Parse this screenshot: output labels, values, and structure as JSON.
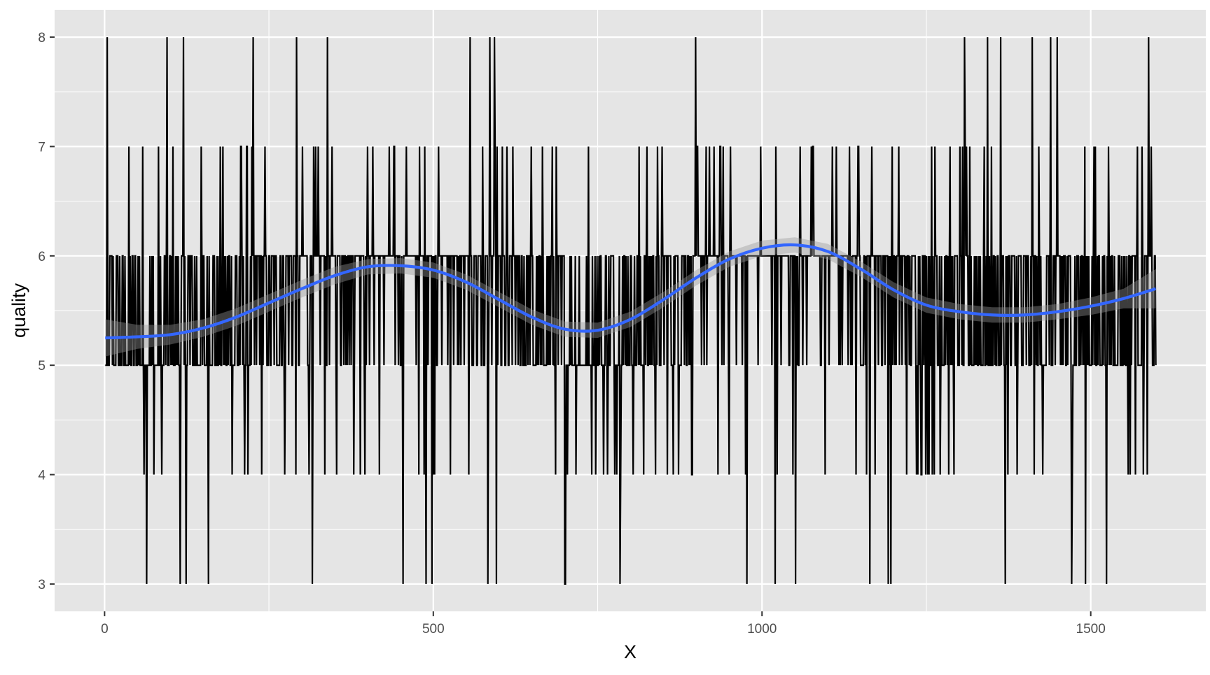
{
  "chart_data": {
    "type": "line",
    "title": "",
    "xlabel": "X",
    "ylabel": "quality",
    "xlim": [
      -76,
      1675
    ],
    "ylim": [
      2.75,
      8.25
    ],
    "x_ticks": [
      0,
      500,
      1000,
      1500
    ],
    "x_tick_labels": [
      "0",
      "500",
      "1000",
      "1500"
    ],
    "x_minor_ticks": [
      250,
      750,
      1250
    ],
    "y_ticks": [
      3,
      4,
      5,
      6,
      7,
      8
    ],
    "y_tick_labels": [
      "3",
      "4",
      "5",
      "6",
      "7",
      "8"
    ],
    "y_minor_ticks": [
      3.5,
      4.5,
      5.5,
      6.5,
      7.5
    ],
    "grid": true,
    "legend": "none",
    "colors": {
      "panel": "#e5e5e5",
      "grid": "#ffffff",
      "series": "#000000",
      "smooth": "#3366ff",
      "ribbon": "#999999"
    },
    "series": [
      {
        "kind": "raw",
        "x_start": 1,
        "x_step": 1,
        "n_points": 1599,
        "values_seed_profile": "integer quality readings between 3 and 8, mostly 5 and 6",
        "values": []
      }
    ],
    "smooth": {
      "method": "loess",
      "x": [
        1,
        50,
        100,
        150,
        200,
        250,
        300,
        350,
        400,
        450,
        500,
        550,
        600,
        650,
        700,
        750,
        800,
        850,
        900,
        950,
        1000,
        1050,
        1100,
        1150,
        1200,
        1250,
        1300,
        1350,
        1400,
        1450,
        1500,
        1550,
        1599
      ],
      "y": [
        5.25,
        5.26,
        5.28,
        5.34,
        5.44,
        5.57,
        5.7,
        5.82,
        5.9,
        5.91,
        5.87,
        5.76,
        5.6,
        5.44,
        5.33,
        5.32,
        5.42,
        5.6,
        5.8,
        5.97,
        6.07,
        6.1,
        6.04,
        5.88,
        5.69,
        5.55,
        5.49,
        5.46,
        5.46,
        5.49,
        5.54,
        5.61,
        5.7
      ],
      "se_lower": [
        5.08,
        5.15,
        5.19,
        5.26,
        5.36,
        5.49,
        5.62,
        5.74,
        5.83,
        5.84,
        5.8,
        5.69,
        5.53,
        5.37,
        5.26,
        5.25,
        5.35,
        5.53,
        5.73,
        5.9,
        6.0,
        6.03,
        5.97,
        5.81,
        5.62,
        5.48,
        5.42,
        5.39,
        5.39,
        5.42,
        5.46,
        5.52,
        5.52
      ],
      "se_upper": [
        5.42,
        5.37,
        5.37,
        5.42,
        5.52,
        5.65,
        5.78,
        5.9,
        5.97,
        5.98,
        5.94,
        5.83,
        5.67,
        5.51,
        5.4,
        5.39,
        5.49,
        5.67,
        5.87,
        6.04,
        6.14,
        6.17,
        6.11,
        5.95,
        5.76,
        5.62,
        5.56,
        5.53,
        5.53,
        5.56,
        5.62,
        5.7,
        5.88
      ]
    }
  }
}
